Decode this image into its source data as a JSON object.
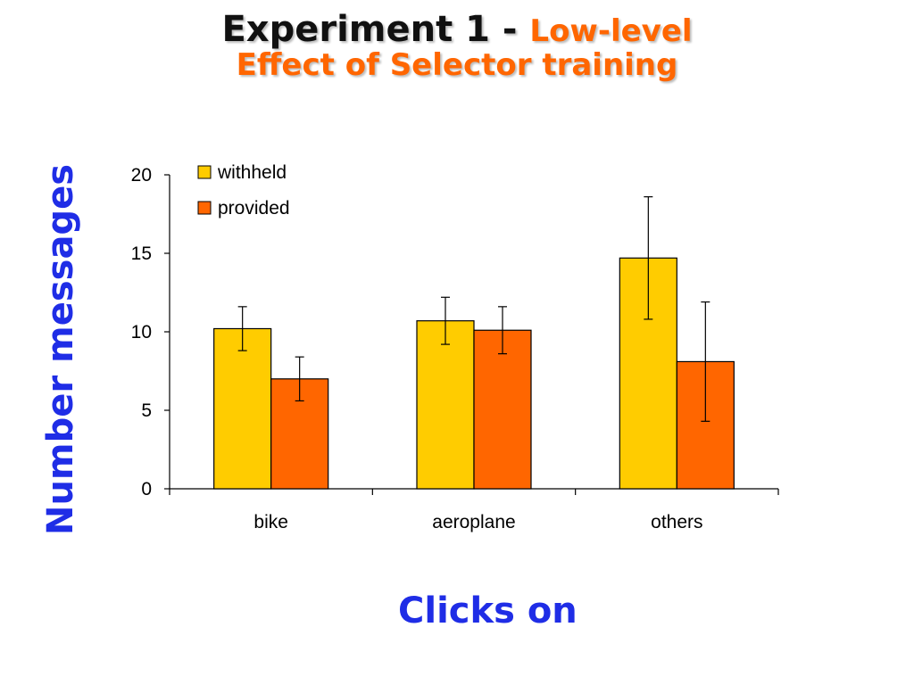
{
  "slide": {
    "title_main": "Experiment 1 - ",
    "title_accent": "Low-level",
    "title_line2": "Effect of Selector training"
  },
  "chart_data": {
    "type": "bar",
    "categories": [
      "bike",
      "aeroplane",
      "others"
    ],
    "series": [
      {
        "name": "withheld",
        "color": "#ffcc00",
        "values": [
          10.2,
          10.7,
          14.7
        ],
        "error": [
          1.4,
          1.5,
          3.9
        ]
      },
      {
        "name": "provided",
        "color": "#ff6600",
        "values": [
          7.0,
          10.1,
          8.1
        ],
        "error": [
          1.4,
          1.5,
          3.8
        ]
      }
    ],
    "xlabel": "Clicks on",
    "ylabel": "Number messages",
    "ylim": [
      0,
      20
    ],
    "yticks": [
      0,
      5,
      10,
      15,
      20
    ],
    "grid": false,
    "legend_position": "top-left"
  }
}
